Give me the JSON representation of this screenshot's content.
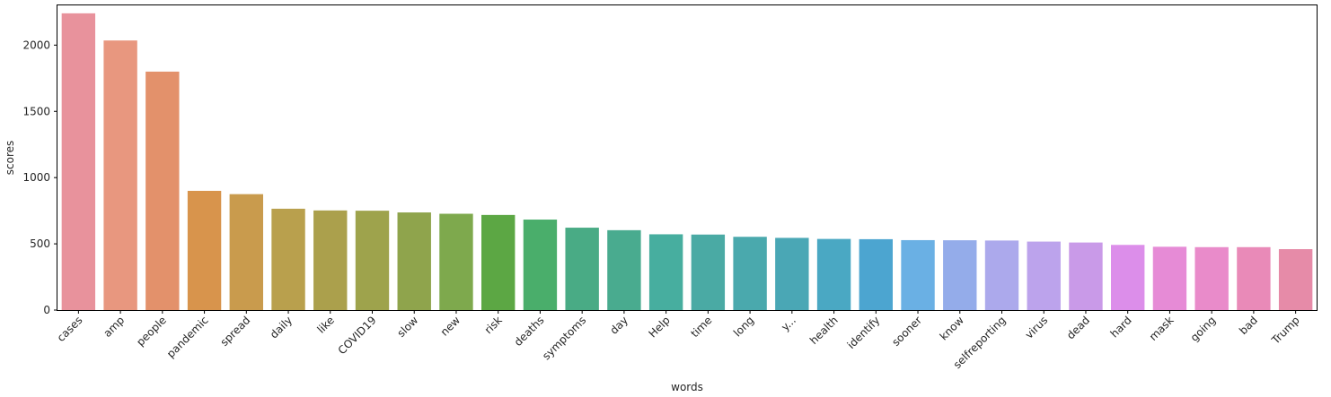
{
  "chart_data": {
    "type": "bar",
    "xlabel": "words",
    "ylabel": "scores",
    "ylim": [
      0,
      2300
    ],
    "yticks": [
      0,
      500,
      1000,
      1500,
      2000
    ],
    "grid": false,
    "categories": [
      "cases",
      "amp",
      "people",
      "pandemic",
      "spread",
      "daily",
      "like",
      "COVID19",
      "slow",
      "new",
      "risk",
      "deaths",
      "symptoms",
      "day",
      "Help",
      "time",
      "long",
      "y...",
      "health",
      "identify",
      "sooner",
      "know",
      "selfreporting",
      "virus",
      "dead",
      "hard",
      "mask",
      "going",
      "bad",
      "Trump"
    ],
    "values": [
      2240,
      2035,
      1800,
      900,
      875,
      765,
      752,
      750,
      737,
      727,
      718,
      683,
      622,
      603,
      572,
      570,
      553,
      545,
      537,
      535,
      528,
      527,
      525,
      517,
      510,
      492,
      478,
      475,
      475,
      460
    ],
    "colors": [
      "#e8929c",
      "#e8977f",
      "#e3916b",
      "#d8944c",
      "#c99b4d",
      "#b9a04d",
      "#aba04c",
      "#9ea34c",
      "#8fa44c",
      "#7ea94d",
      "#5ca744",
      "#4aae6b",
      "#49ab85",
      "#49ab8f",
      "#47ae9f",
      "#4aaaa4",
      "#4aa9ad",
      "#4aa7b5",
      "#4aa8c3",
      "#4ca5d0",
      "#6ab0e4",
      "#94acea",
      "#aca9ec",
      "#bca3ec",
      "#c99ae8",
      "#dc8eea",
      "#e68bd6",
      "#e98bca",
      "#e98ab8",
      "#e68ba8"
    ]
  }
}
